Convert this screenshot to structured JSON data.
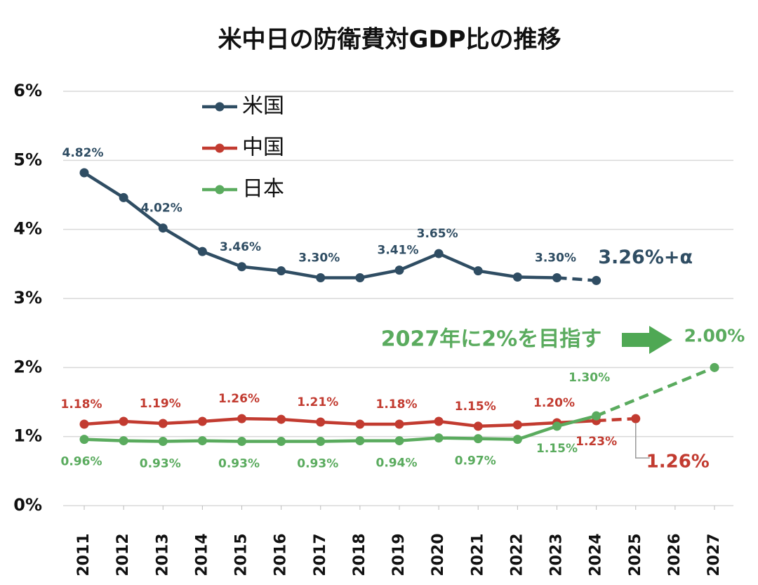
{
  "chart_data": {
    "type": "line",
    "title": "米中日の防衛費対GDP比の推移",
    "annotations": [
      "2027年に2%を目指す"
    ],
    "xlim": [
      2011,
      2027
    ],
    "xticks": [
      2011,
      2012,
      2013,
      2014,
      2015,
      2016,
      2017,
      2018,
      2019,
      2020,
      2021,
      2022,
      2023,
      2024,
      2025,
      2026,
      2027
    ],
    "ylim": [
      0,
      6
    ],
    "yticks": [
      {
        "value": 0,
        "label": "0%"
      },
      {
        "value": 1,
        "label": "1%"
      },
      {
        "value": 2,
        "label": "2%"
      },
      {
        "value": 3,
        "label": "3%"
      },
      {
        "value": 4,
        "label": "4%"
      },
      {
        "value": 5,
        "label": "5%"
      },
      {
        "value": 6,
        "label": "6%"
      }
    ],
    "grid": true,
    "legend": "upper left",
    "series": [
      {
        "name": "米国",
        "color": "#2f4d63",
        "dashed_from": 12,
        "x": [
          2011,
          2012,
          2013,
          2014,
          2015,
          2016,
          2017,
          2018,
          2019,
          2020,
          2021,
          2022,
          2023,
          2024
        ],
        "values": [
          4.82,
          4.46,
          4.02,
          3.68,
          3.46,
          3.4,
          3.3,
          3.3,
          3.41,
          3.65,
          3.4,
          3.31,
          3.3,
          3.26
        ],
        "value_labels": [
          "4.82%",
          null,
          "4.02%",
          null,
          "3.46%",
          null,
          "3.30%",
          null,
          "3.41%",
          "3.65%",
          null,
          null,
          "3.30%",
          "3.26%+α"
        ]
      },
      {
        "name": "中国",
        "color": "#c23b30",
        "dashed_from": 13,
        "x": [
          2011,
          2012,
          2013,
          2014,
          2015,
          2016,
          2017,
          2018,
          2019,
          2020,
          2021,
          2022,
          2023,
          2024,
          2025
        ],
        "values": [
          1.18,
          1.22,
          1.19,
          1.22,
          1.26,
          1.25,
          1.21,
          1.18,
          1.18,
          1.22,
          1.15,
          1.17,
          1.2,
          1.23,
          1.26
        ],
        "value_labels": [
          "1.18%",
          null,
          "1.19%",
          null,
          "1.26%",
          null,
          "1.21%",
          null,
          "1.18%",
          null,
          "1.15%",
          null,
          "1.20%",
          "1.23%",
          "1.26%"
        ]
      },
      {
        "name": "日本",
        "color": "#5aab5e",
        "dashed_from": 13,
        "x": [
          2011,
          2012,
          2013,
          2014,
          2015,
          2016,
          2017,
          2018,
          2019,
          2020,
          2021,
          2022,
          2023,
          2024,
          2027
        ],
        "values": [
          0.96,
          0.94,
          0.93,
          0.94,
          0.93,
          0.93,
          0.93,
          0.94,
          0.94,
          0.98,
          0.97,
          0.96,
          1.15,
          1.3,
          2.0
        ],
        "value_labels": [
          "0.96%",
          null,
          "0.93%",
          null,
          "0.93%",
          null,
          "0.93%",
          null,
          "0.94%",
          null,
          "0.97%",
          null,
          "1.15%",
          "1.30%",
          "2.00%"
        ]
      }
    ]
  }
}
